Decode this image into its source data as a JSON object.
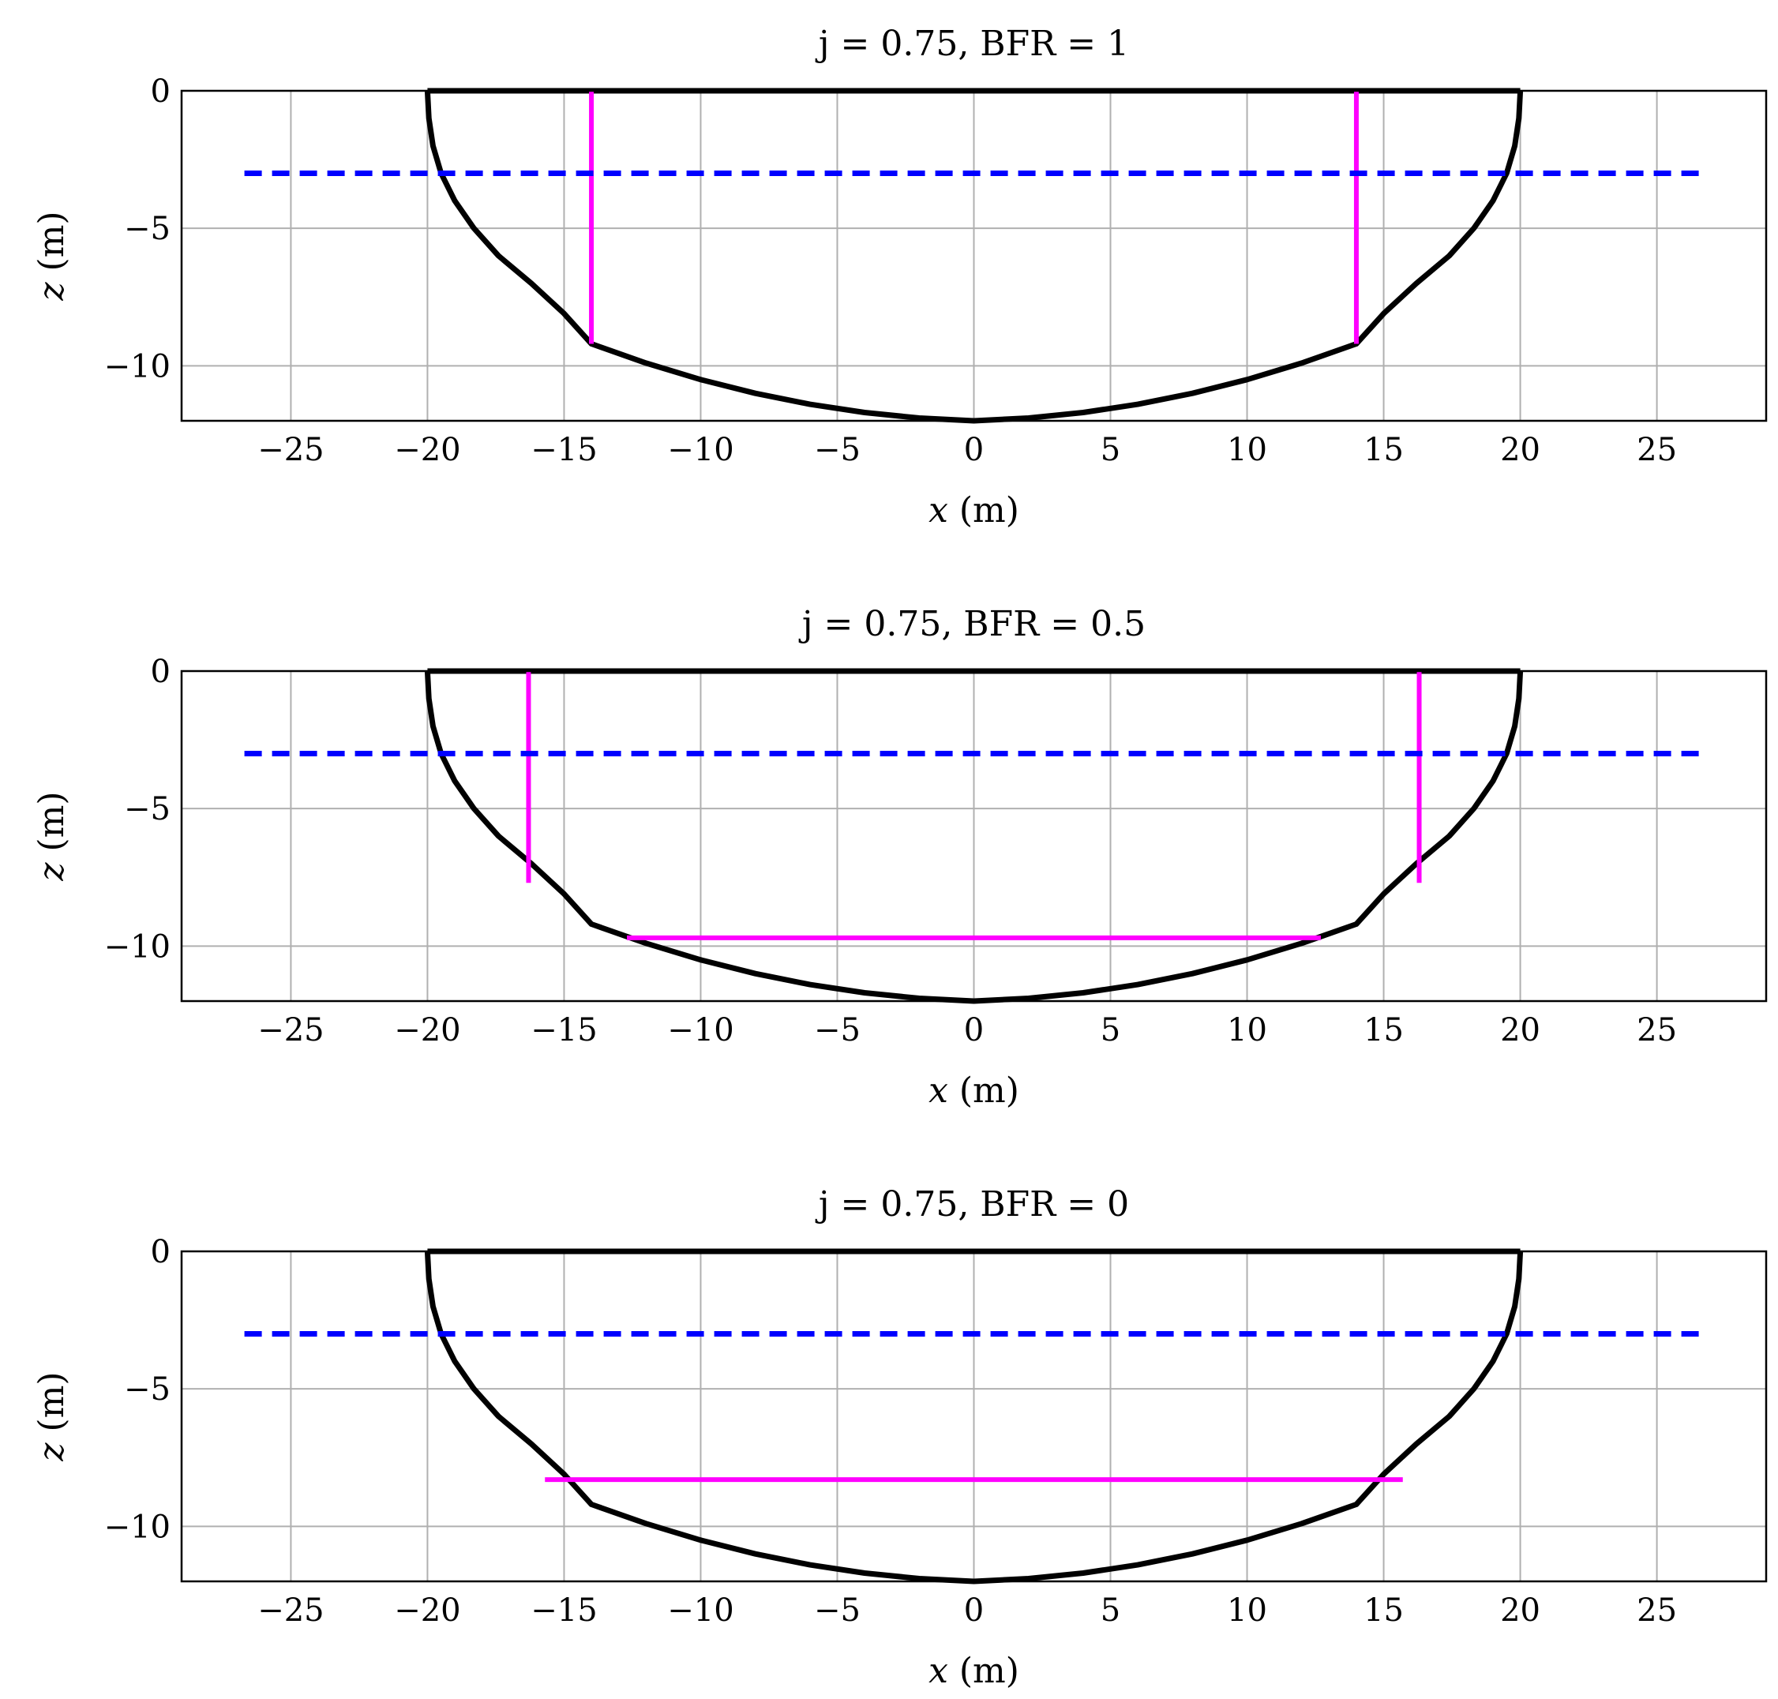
{
  "chart_data": [
    {
      "type": "line",
      "title": "j = 0.75, BFR = 1",
      "xlabel_var": "x",
      "xlabel_unit": " (m)",
      "ylabel_var": "z",
      "ylabel_unit": " (m)",
      "xlim": [
        -29,
        29
      ],
      "ylim": [
        -12,
        0
      ],
      "xticks": [
        -25,
        -20,
        -15,
        -10,
        -5,
        0,
        5,
        10,
        15,
        20,
        25
      ],
      "xtick_labels": [
        "−25",
        "−20",
        "−15",
        "−10",
        "−5",
        "0",
        "5",
        "10",
        "15",
        "20",
        "25"
      ],
      "yticks": [
        0,
        -5,
        -10
      ],
      "ytick_labels": [
        "0",
        "−5",
        "−10"
      ],
      "grid": true,
      "colors": {
        "hull": "#000000",
        "waterline": "#0000ff",
        "bulkheads": "#ff00ff",
        "grid": "#b0b0b0"
      },
      "hull": {
        "x": [
          -20,
          -19.95,
          -19.8,
          -19.5,
          -19,
          -18.3,
          -17.4,
          -16.2,
          -15,
          -14,
          -12,
          -10,
          -8,
          -6,
          -4,
          -2,
          0,
          2,
          4,
          6,
          8,
          10,
          12,
          14,
          15,
          16.2,
          17.4,
          18.3,
          19,
          19.5,
          19.8,
          19.95,
          20
        ],
        "z": [
          0,
          -1,
          -2,
          -3,
          -4,
          -5,
          -6,
          -7,
          -8.1,
          -9.2,
          -9.9,
          -10.5,
          -11.0,
          -11.4,
          -11.7,
          -11.9,
          -12.0,
          -11.9,
          -11.7,
          -11.4,
          -11.0,
          -10.5,
          -9.9,
          -9.2,
          -8.1,
          -7,
          -6,
          -5,
          -4,
          -3,
          -2,
          -1,
          0
        ],
        "deck_x": [
          -20,
          20
        ],
        "deck_z": [
          0,
          0
        ]
      },
      "waterline": {
        "x": [
          -26.7,
          26.7
        ],
        "z": [
          -3,
          -3
        ]
      },
      "bulkheads": [
        {
          "x": [
            -14,
            -14
          ],
          "z": [
            0,
            -9.2
          ]
        },
        {
          "x": [
            14,
            14
          ],
          "z": [
            0,
            -9.2
          ]
        }
      ]
    },
    {
      "type": "line",
      "title": "j = 0.75, BFR = 0.5",
      "xlabel_var": "x",
      "xlabel_unit": " (m)",
      "ylabel_var": "z",
      "ylabel_unit": " (m)",
      "xlim": [
        -29,
        29
      ],
      "ylim": [
        -12,
        0
      ],
      "xticks": [
        -25,
        -20,
        -15,
        -10,
        -5,
        0,
        5,
        10,
        15,
        20,
        25
      ],
      "xtick_labels": [
        "−25",
        "−20",
        "−15",
        "−10",
        "−5",
        "0",
        "5",
        "10",
        "15",
        "20",
        "25"
      ],
      "yticks": [
        0,
        -5,
        -10
      ],
      "ytick_labels": [
        "0",
        "−5",
        "−10"
      ],
      "grid": true,
      "colors": {
        "hull": "#000000",
        "waterline": "#0000ff",
        "bulkheads": "#ff00ff",
        "grid": "#b0b0b0"
      },
      "hull": {
        "x": [
          -20,
          -19.95,
          -19.8,
          -19.5,
          -19,
          -18.3,
          -17.4,
          -16.2,
          -15,
          -14,
          -12,
          -10,
          -8,
          -6,
          -4,
          -2,
          0,
          2,
          4,
          6,
          8,
          10,
          12,
          14,
          15,
          16.2,
          17.4,
          18.3,
          19,
          19.5,
          19.8,
          19.95,
          20
        ],
        "z": [
          0,
          -1,
          -2,
          -3,
          -4,
          -5,
          -6,
          -7,
          -8.1,
          -9.2,
          -9.9,
          -10.5,
          -11.0,
          -11.4,
          -11.7,
          -11.9,
          -12.0,
          -11.9,
          -11.7,
          -11.4,
          -11.0,
          -10.5,
          -9.9,
          -9.2,
          -8.1,
          -7,
          -6,
          -5,
          -4,
          -3,
          -2,
          -1,
          0
        ],
        "deck_x": [
          -20,
          20
        ],
        "deck_z": [
          0,
          0
        ]
      },
      "waterline": {
        "x": [
          -26.7,
          26.7
        ],
        "z": [
          -3,
          -3
        ]
      },
      "bulkheads": [
        {
          "x": [
            -16.3,
            -16.3
          ],
          "z": [
            0,
            -7.7
          ]
        },
        {
          "x": [
            16.3,
            16.3
          ],
          "z": [
            0,
            -7.7
          ]
        },
        {
          "x": [
            -12.7,
            12.7
          ],
          "z": [
            -9.7,
            -9.7
          ]
        }
      ]
    },
    {
      "type": "line",
      "title": "j = 0.75, BFR = 0",
      "xlabel_var": "x",
      "xlabel_unit": " (m)",
      "ylabel_var": "z",
      "ylabel_unit": " (m)",
      "xlim": [
        -29,
        29
      ],
      "ylim": [
        -12,
        0
      ],
      "xticks": [
        -25,
        -20,
        -15,
        -10,
        -5,
        0,
        5,
        10,
        15,
        20,
        25
      ],
      "xtick_labels": [
        "−25",
        "−20",
        "−15",
        "−10",
        "−5",
        "0",
        "5",
        "10",
        "15",
        "20",
        "25"
      ],
      "yticks": [
        0,
        -5,
        -10
      ],
      "ytick_labels": [
        "0",
        "−5",
        "−10"
      ],
      "grid": true,
      "colors": {
        "hull": "#000000",
        "waterline": "#0000ff",
        "bulkheads": "#ff00ff",
        "grid": "#b0b0b0"
      },
      "hull": {
        "x": [
          -20,
          -19.95,
          -19.8,
          -19.5,
          -19,
          -18.3,
          -17.4,
          -16.2,
          -15,
          -14,
          -12,
          -10,
          -8,
          -6,
          -4,
          -2,
          0,
          2,
          4,
          6,
          8,
          10,
          12,
          14,
          15,
          16.2,
          17.4,
          18.3,
          19,
          19.5,
          19.8,
          19.95,
          20
        ],
        "z": [
          0,
          -1,
          -2,
          -3,
          -4,
          -5,
          -6,
          -7,
          -8.1,
          -9.2,
          -9.9,
          -10.5,
          -11.0,
          -11.4,
          -11.7,
          -11.9,
          -12.0,
          -11.9,
          -11.7,
          -11.4,
          -11.0,
          -10.5,
          -9.9,
          -9.2,
          -8.1,
          -7,
          -6,
          -5,
          -4,
          -3,
          -2,
          -1,
          0
        ],
        "deck_x": [
          -20,
          20
        ],
        "deck_z": [
          0,
          0
        ]
      },
      "waterline": {
        "x": [
          -26.7,
          26.7
        ],
        "z": [
          -3,
          -3
        ]
      },
      "bulkheads": [
        {
          "x": [
            -15.7,
            15.7
          ],
          "z": [
            -8.3,
            -8.3
          ]
        }
      ]
    }
  ]
}
